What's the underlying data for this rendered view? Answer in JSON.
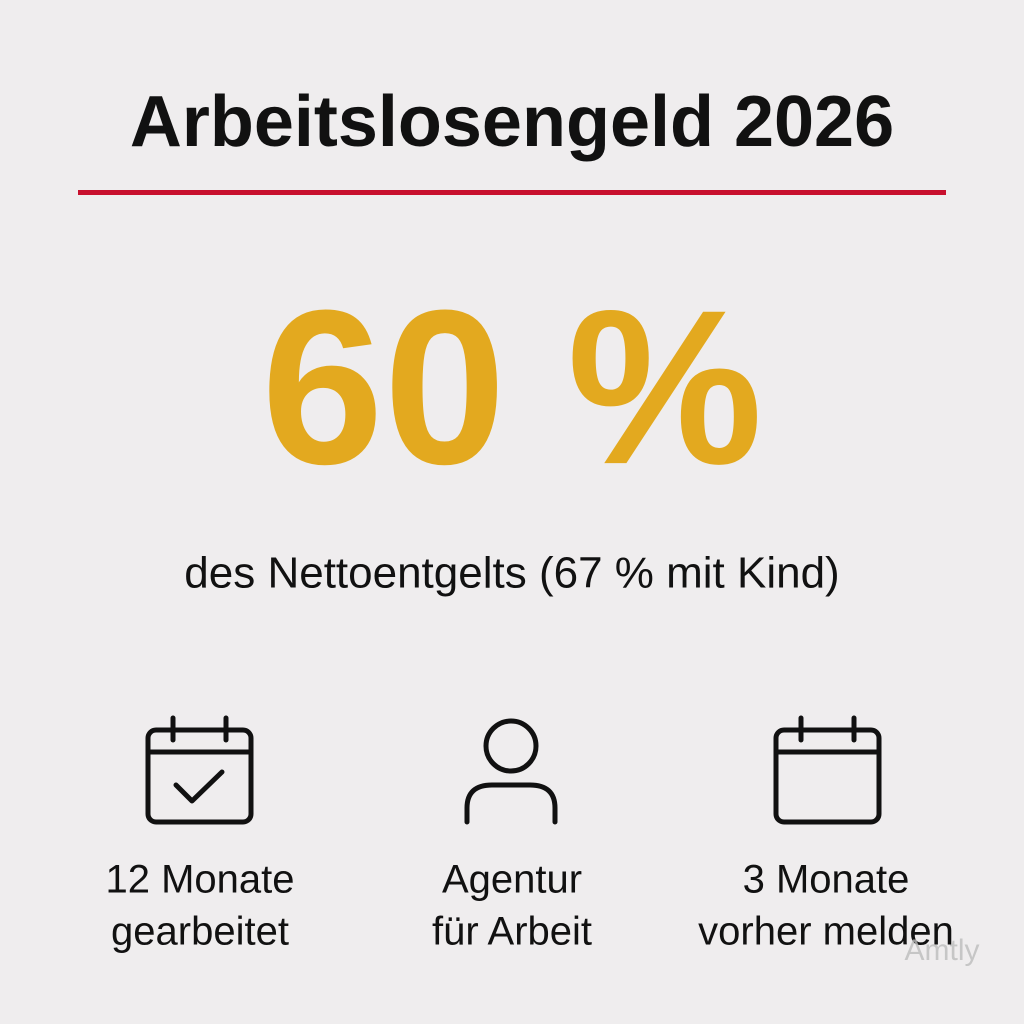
{
  "header": {
    "title": "Arbeitslosengeld 2026"
  },
  "highlight": {
    "value": "60 %",
    "caption": "des Nettoentgelts (67 % mit Kind)"
  },
  "items": [
    {
      "lines": [
        "12 Monate",
        "gearbeitet"
      ]
    },
    {
      "lines": [
        "Agentur",
        "für Arbeit"
      ]
    },
    {
      "lines": [
        "3 Monate",
        "vorher melden"
      ]
    }
  ],
  "watermark": "Amtly"
}
